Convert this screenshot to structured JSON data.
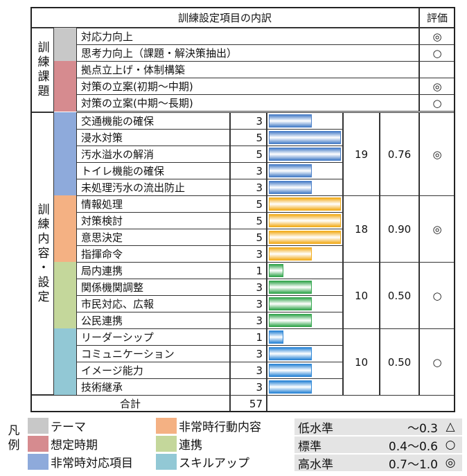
{
  "header": {
    "title": "訓練設定項目の内訳",
    "evaluation": "評価"
  },
  "issues": {
    "label": "訓練課題",
    "rows": [
      {
        "item": "対応力向上",
        "category": 0,
        "evaluation": "◎"
      },
      {
        "item": "思考力向上（課題・解決策抽出）",
        "category": 0,
        "evaluation": "○"
      },
      {
        "item": "拠点立上げ・体制構築",
        "category": 1
      },
      {
        "item": "対策の立案(初期～中期)",
        "category": 1,
        "evaluation": "◎"
      },
      {
        "item": "対策の立案(中期～長期)",
        "category": 1,
        "evaluation": "○"
      }
    ]
  },
  "contents": {
    "label": "訓練内容・設定",
    "groups": [
      {
        "category": 2,
        "bar_color": "#4a7fc8",
        "total": 19,
        "ratio": "0.76",
        "evaluation": "◎",
        "rows": [
          {
            "item": "交通機能の確保",
            "value": 3
          },
          {
            "item": "浸水対策",
            "value": 5
          },
          {
            "item": "汚水溢水の解消",
            "value": 5
          },
          {
            "item": "トイレ機能の確保",
            "value": 3
          },
          {
            "item": "未処理汚水の流出防止",
            "value": 3
          }
        ]
      },
      {
        "category": 3,
        "bar_color": "#f2ad1f",
        "total": 18,
        "ratio": "0.90",
        "evaluation": "◎",
        "rows": [
          {
            "item": "情報処理",
            "value": 5
          },
          {
            "item": "対策検討",
            "value": 5
          },
          {
            "item": "意思決定",
            "value": 5
          },
          {
            "item": "指揮命令",
            "value": 3
          }
        ]
      },
      {
        "category": 4,
        "bar_color": "#35a64f",
        "total": 10,
        "ratio": "0.50",
        "evaluation": "○",
        "rows": [
          {
            "item": "局内連携",
            "value": 1
          },
          {
            "item": "関係機関調整",
            "value": 3
          },
          {
            "item": "市民対応、広報",
            "value": 3
          },
          {
            "item": "公民連携",
            "value": 3
          }
        ]
      },
      {
        "category": 5,
        "bar_color": "#2d86d6",
        "total": 10,
        "ratio": "0.50",
        "evaluation": "○",
        "rows": [
          {
            "item": "リーダーシップ",
            "value": 1
          },
          {
            "item": "コミュニケーション",
            "value": 3
          },
          {
            "item": "イメージ能力",
            "value": 3
          },
          {
            "item": "技術継承",
            "value": 3
          }
        ]
      }
    ]
  },
  "sum": {
    "label": "合計",
    "value": 57
  },
  "legend": {
    "label": "凡例",
    "categories": [
      {
        "name": "テーマ",
        "color": "#c8c8c8"
      },
      {
        "name": "想定時期",
        "color": "#d68b8f"
      },
      {
        "name": "非常時対応項目",
        "color": "#8eaadb"
      },
      {
        "name": "非常時行動内容",
        "color": "#f4b183"
      },
      {
        "name": "連携",
        "color": "#c4d79b"
      },
      {
        "name": "スキルアップ",
        "color": "#92c8d5"
      }
    ],
    "levels": [
      {
        "name": "低水準",
        "range": "～0.3",
        "symbol": "△"
      },
      {
        "name": "標準",
        "range": "0.4～0.6",
        "symbol": "○"
      },
      {
        "name": "高水準",
        "range": "0.7～1.0",
        "symbol": "◎"
      }
    ]
  }
}
